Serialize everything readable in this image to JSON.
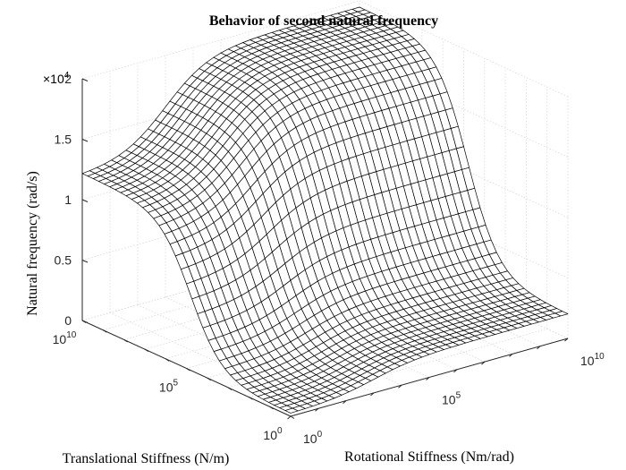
{
  "chart_data": {
    "type": "surface",
    "title": "Behavior of second natural frequency",
    "xlabel": "Translational Stiffness (N/m)",
    "ylabel": "Rotational Stiffness (Nm/rad)",
    "zlabel": "Natural frequency (rad/s)",
    "z_exponent_label": {
      "base": "×10",
      "exp": "4"
    },
    "x_scale": "log",
    "y_scale": "log",
    "x_range": [
      1,
      10000000000
    ],
    "y_range": [
      1,
      10000000000
    ],
    "zlim": [
      0,
      20000
    ],
    "z_ticks": [
      {
        "value": 0,
        "label": "0"
      },
      {
        "value": 5000,
        "label": "0.5"
      },
      {
        "value": 10000,
        "label": "1"
      },
      {
        "value": 15000,
        "label": "1.5"
      },
      {
        "value": 20000,
        "label": "2"
      }
    ],
    "x_ticks": [
      {
        "base": "10",
        "exp": "0"
      },
      {
        "base": "10",
        "exp": "5"
      },
      {
        "base": "10",
        "exp": "10"
      }
    ],
    "y_ticks": [
      {
        "base": "10",
        "exp": "0"
      },
      {
        "base": "10",
        "exp": "5"
      },
      {
        "base": "10",
        "exp": "10"
      }
    ],
    "grid": true,
    "corner_values": {
      "trans_low_rot_low": 200,
      "trans_high_rot_low": 12000,
      "trans_low_rot_high": 2000,
      "trans_high_rot_high": 19500
    },
    "colors": {
      "mesh_line": "#000000",
      "mesh_face": "#ffffff",
      "grid": "#d9d9d9"
    }
  }
}
